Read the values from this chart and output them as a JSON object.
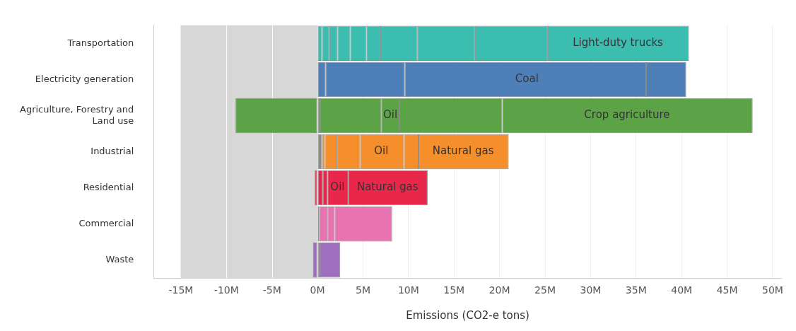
{
  "chart_data": {
    "type": "bar",
    "orientation": "horizontal",
    "stacked": true,
    "xlabel": "Emissions (CO2-e tons)",
    "categories": [
      "Transportation",
      "Electricity generation",
      "Agriculture, Forestry and Land use",
      "Industrial",
      "Residential",
      "Commercial",
      "Waste"
    ],
    "series": [
      {
        "colors": [
          "#3bbdb0",
          "#4e7fb8",
          "#5ba346",
          "#f58f2c",
          "#e8274a",
          "#e873b0",
          "#9e6fbf"
        ],
        "values": [
          null,
          null,
          -9.0,
          null,
          -0.3,
          null,
          -0.5
        ]
      },
      {
        "colors": [
          "#3bbdb0",
          "#4e7fb8",
          "#5ba346",
          "#8c8c8c",
          "#e8274a",
          "#e873b0",
          "#9e6fbf"
        ],
        "values": [
          0.5,
          0.9,
          0.3,
          0.5,
          0.6,
          0.2,
          0.3
        ]
      },
      {
        "colors": [
          "#3bbdb0",
          "#4e7fb8",
          "#5ba346",
          "#f58f2c",
          "#e8274a",
          "#e873b0",
          "#9e6fbf"
        ],
        "values": [
          null,
          8.7,
          6.7,
          0.3,
          null,
          0.9,
          2.2
        ]
      },
      {
        "colors": [
          "#3bbdb0",
          "#4e7fb8",
          "#5ba346",
          "#f58f2c",
          "#e8274a",
          "#e873b0",
          "#9e6fbf"
        ],
        "values": [
          0.8,
          26.5,
          2.0,
          1.3,
          0.5,
          0.8,
          null
        ]
      },
      {
        "colors": [
          "#3bbdb0",
          "#4e7fb8",
          "#5ba346",
          "#f58f2c",
          "#e8274a",
          "#e873b0",
          "#9e6fbf"
        ],
        "values": [
          0.9,
          4.4,
          11.3,
          2.6,
          2.3,
          6.3,
          null
        ]
      },
      {
        "colors": [
          "#3bbdb0",
          "#4e7fb8",
          "#5ba346",
          "#f58f2c",
          "#e8274a",
          "#e873b0",
          "#9e6fbf"
        ],
        "values": [
          1.4,
          null,
          27.5,
          4.8,
          8.7,
          null,
          null
        ]
      },
      {
        "colors": [
          "#3bbdb0",
          "#4e7fb8",
          "#5ba346",
          "#f58f2c",
          "#e8274a",
          "#e873b0",
          "#9e6fbf"
        ],
        "values": [
          1.8,
          null,
          null,
          1.6,
          null,
          null,
          null
        ]
      },
      {
        "colors": [
          "#3bbdb0",
          "#4e7fb8",
          "#5ba346",
          "#f58f2c",
          "#e8274a",
          "#e873b0",
          "#9e6fbf"
        ],
        "values": [
          1.5,
          null,
          null,
          9.9,
          null,
          null,
          null
        ]
      },
      {
        "colors": [
          "#3bbdb0",
          "#4e7fb8",
          "#5ba346",
          "#f58f2c",
          "#e8274a",
          "#e873b0",
          "#9e6fbf"
        ],
        "values": [
          4.1,
          null,
          null,
          null,
          null,
          null,
          null
        ]
      },
      {
        "colors": [
          "#3bbdb0",
          "#4e7fb8",
          "#5ba346",
          "#f58f2c",
          "#e8274a",
          "#e873b0",
          "#9e6fbf"
        ],
        "values": [
          6.3,
          null,
          null,
          null,
          null,
          null,
          null
        ]
      },
      {
        "colors": [
          "#3bbdb0",
          "#4e7fb8",
          "#5ba346",
          "#f58f2c",
          "#e8274a",
          "#e873b0",
          "#9e6fbf"
        ],
        "values": [
          8.0,
          null,
          null,
          null,
          null,
          null,
          null
        ]
      },
      {
        "colors": [
          "#3bbdb0",
          "#4e7fb8",
          "#5ba346",
          "#f58f2c",
          "#e8274a",
          "#e873b0",
          "#9e6fbf"
        ],
        "values": [
          15.5,
          null,
          null,
          null,
          null,
          null,
          null
        ]
      }
    ],
    "annotations": [
      {
        "text": "Light-duty trucks",
        "x": 33,
        "y": "Transportation"
      },
      {
        "text": "Coal",
        "x": 23,
        "y": "Electricity generation"
      },
      {
        "text": "Oil",
        "x": 8,
        "y": "Agriculture, Forestry and Land use"
      },
      {
        "text": "Crop agriculture",
        "x": 34,
        "y": "Agriculture, Forestry and Land use"
      },
      {
        "text": "Oil",
        "x": 7,
        "y": "Industrial"
      },
      {
        "text": "Natural gas",
        "x": 16,
        "y": "Industrial"
      },
      {
        "text": "Oil",
        "x": 2.2,
        "y": "Residential"
      },
      {
        "text": "Natural gas",
        "x": 7.7,
        "y": "Residential"
      }
    ],
    "bands": [
      {
        "axis": "x",
        "from": -15,
        "to": 0,
        "color": "#d7d7d7"
      }
    ],
    "xlim": [
      -18,
      51
    ],
    "xticks": [
      {
        "value": -15,
        "label": "-15M"
      },
      {
        "value": -10,
        "label": "-10M"
      },
      {
        "value": -5,
        "label": "-5M"
      },
      {
        "value": 0,
        "label": "0M"
      },
      {
        "value": 5,
        "label": "5M"
      },
      {
        "value": 10,
        "label": "10M"
      },
      {
        "value": 15,
        "label": "15M"
      },
      {
        "value": 20,
        "label": "20M"
      },
      {
        "value": 25,
        "label": "25M"
      },
      {
        "value": 30,
        "label": "30M"
      },
      {
        "value": 35,
        "label": "35M"
      },
      {
        "value": 40,
        "label": "40M"
      },
      {
        "value": 45,
        "label": "45M"
      },
      {
        "value": 50,
        "label": "50M"
      }
    ],
    "grid": "x",
    "legend": false
  }
}
